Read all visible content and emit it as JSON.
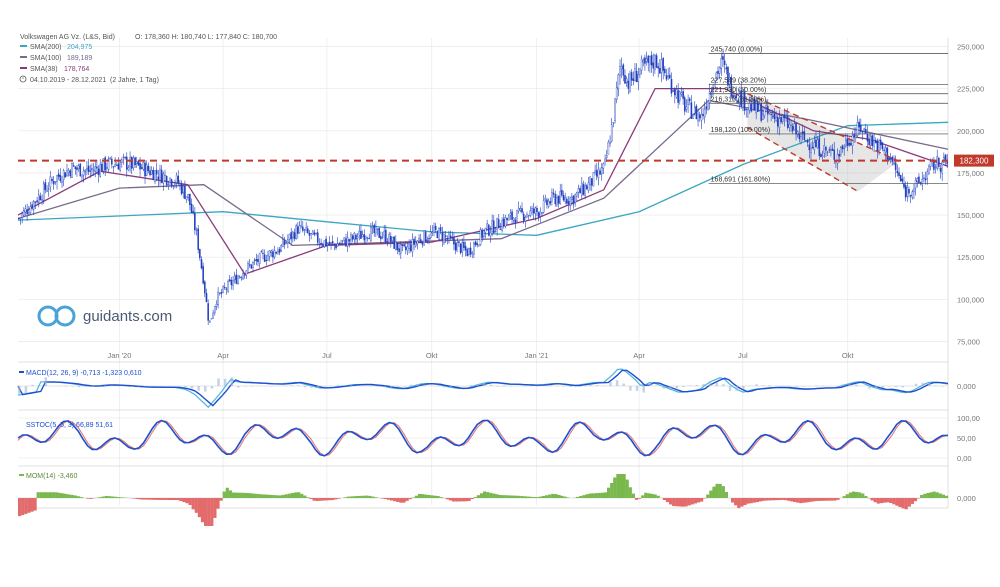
{
  "header": {
    "instrument": "Volkswagen AG Vz. (L&S, Bid)",
    "ohlc": "O: 178,360  H: 180,740  L: 177,840  C: 180,700",
    "range": "04.10.2019 - 28.12.2021",
    "range_note": "(2 Jahre, 1 Tag)"
  },
  "legend": [
    {
      "label": "SMA(200)",
      "value": "204,975",
      "color": "#3aa6c4"
    },
    {
      "label": "SMA(100)",
      "value": "189,189",
      "color": "#7a6a8c"
    },
    {
      "label": "SMA(38)",
      "value": "178,764",
      "color": "#8a3a78"
    }
  ],
  "watermark": "guidants.com",
  "colors": {
    "candle": "#1f3fbf",
    "resistance": "#c0392b",
    "grid": "#ececec",
    "macd": "#1d4fd0",
    "signal": "#4fb3d9",
    "momUp": "#7ab84e",
    "momDown": "#e36b6b"
  },
  "price_marker": {
    "value": 182.3,
    "label": "182,300"
  },
  "panels": {
    "macd": {
      "label": "MACD(12, 26, 9)",
      "v1": "-0,713",
      "v2": "-1,323",
      "v3": "0,610",
      "ticks": [
        "0,000"
      ]
    },
    "stoch": {
      "label": "SSTOC(5, 5, 3)",
      "v1": "66,89",
      "v2": "51,61",
      "ticks": [
        "100,00",
        "50,00",
        "0,00"
      ]
    },
    "mom": {
      "label": "MOM(14)",
      "v1": "-3,460",
      "ticks": [
        "0,000"
      ]
    }
  },
  "chart_data": {
    "type": "candlestick",
    "title": "Volkswagen AG Vz. (L&S, Bid)",
    "period": "04.10.2019 - 28.12.2021",
    "x_ticks": [
      "Jan '20",
      "Apr",
      "Jul",
      "Okt",
      "Jan '21",
      "Apr",
      "Jul",
      "Okt"
    ],
    "y_ticks": [
      "250,000",
      "225,000",
      "200,000",
      "175,000",
      "150,000",
      "125,000",
      "100,000",
      "75,000"
    ],
    "ylim": [
      70,
      255
    ],
    "close_path": [
      [
        "2019-10-04",
        148
      ],
      [
        "2019-10-20",
        160
      ],
      [
        "2019-11-05",
        172
      ],
      [
        "2019-11-20",
        178
      ],
      [
        "2019-12-05",
        176
      ],
      [
        "2019-12-20",
        180
      ],
      [
        "2020-01-05",
        181
      ],
      [
        "2020-01-20",
        178
      ],
      [
        "2020-02-05",
        174
      ],
      [
        "2020-02-20",
        170
      ],
      [
        "2020-03-01",
        160
      ],
      [
        "2020-03-08",
        138
      ],
      [
        "2020-03-14",
        112
      ],
      [
        "2020-03-19",
        85
      ],
      [
        "2020-03-25",
        100
      ],
      [
        "2020-04-05",
        108
      ],
      [
        "2020-04-20",
        118
      ],
      [
        "2020-05-05",
        125
      ],
      [
        "2020-05-20",
        130
      ],
      [
        "2020-06-05",
        142
      ],
      [
        "2020-06-20",
        136
      ],
      [
        "2020-07-05",
        132
      ],
      [
        "2020-07-20",
        135
      ],
      [
        "2020-08-05",
        140
      ],
      [
        "2020-08-20",
        138
      ],
      [
        "2020-09-05",
        128
      ],
      [
        "2020-09-20",
        136
      ],
      [
        "2020-10-05",
        140
      ],
      [
        "2020-10-20",
        133
      ],
      [
        "2020-11-01",
        128
      ],
      [
        "2020-11-15",
        140
      ],
      [
        "2020-12-01",
        146
      ],
      [
        "2020-12-15",
        150
      ],
      [
        "2021-01-01",
        152
      ],
      [
        "2021-01-15",
        160
      ],
      [
        "2021-02-01",
        160
      ],
      [
        "2021-02-15",
        168
      ],
      [
        "2021-03-01",
        178
      ],
      [
        "2021-03-08",
        205
      ],
      [
        "2021-03-15",
        240
      ],
      [
        "2021-03-22",
        228
      ],
      [
        "2021-04-01",
        236
      ],
      [
        "2021-04-15",
        242
      ],
      [
        "2021-04-25",
        232
      ],
      [
        "2021-05-10",
        215
      ],
      [
        "2021-05-25",
        208
      ],
      [
        "2021-06-05",
        232
      ],
      [
        "2021-06-12",
        240
      ],
      [
        "2021-06-20",
        226
      ],
      [
        "2021-07-05",
        215
      ],
      [
        "2021-07-20",
        210
      ],
      [
        "2021-08-05",
        206
      ],
      [
        "2021-08-20",
        196
      ],
      [
        "2021-09-05",
        190
      ],
      [
        "2021-09-20",
        185
      ],
      [
        "2021-10-01",
        195
      ],
      [
        "2021-10-12",
        202
      ],
      [
        "2021-10-20",
        195
      ],
      [
        "2021-11-05",
        186
      ],
      [
        "2021-11-20",
        164
      ],
      [
        "2021-12-01",
        168
      ],
      [
        "2021-12-15",
        180
      ],
      [
        "2021-12-28",
        181
      ]
    ],
    "series": [
      {
        "name": "SMA(200)",
        "value": 204.975,
        "path": [
          [
            "2019-10-04",
            147
          ],
          [
            "2020-04-01",
            152
          ],
          [
            "2020-07-01",
            146
          ],
          [
            "2020-10-01",
            140
          ],
          [
            "2021-01-01",
            138
          ],
          [
            "2021-04-01",
            152
          ],
          [
            "2021-07-01",
            180
          ],
          [
            "2021-10-01",
            203
          ],
          [
            "2021-12-28",
            205
          ]
        ]
      },
      {
        "name": "SMA(100)",
        "value": 189.189,
        "path": [
          [
            "2019-10-04",
            148
          ],
          [
            "2020-01-01",
            166
          ],
          [
            "2020-03-15",
            168
          ],
          [
            "2020-06-01",
            132
          ],
          [
            "2020-09-01",
            134
          ],
          [
            "2020-12-01",
            136
          ],
          [
            "2021-03-01",
            160
          ],
          [
            "2021-06-01",
            218
          ],
          [
            "2021-09-01",
            206
          ],
          [
            "2021-12-28",
            189
          ]
        ]
      },
      {
        "name": "SMA(38)",
        "value": 178.764,
        "path": [
          [
            "2019-10-04",
            150
          ],
          [
            "2019-12-15",
            176
          ],
          [
            "2020-03-01",
            168
          ],
          [
            "2020-04-20",
            115
          ],
          [
            "2020-07-01",
            132
          ],
          [
            "2020-10-01",
            134
          ],
          [
            "2021-01-01",
            148
          ],
          [
            "2021-03-01",
            165
          ],
          [
            "2021-04-15",
            225
          ],
          [
            "2021-06-15",
            225
          ],
          [
            "2021-09-01",
            200
          ],
          [
            "2021-10-20",
            195
          ],
          [
            "2021-12-28",
            179
          ]
        ]
      }
    ],
    "horizontal_line": {
      "value": 182.3,
      "label": "182,300",
      "style": "dashed",
      "color": "#c0392b"
    },
    "fibonacci_levels": [
      {
        "label": "245,740 (0.00%)",
        "value": 245.74
      },
      {
        "label": "227,549 (38.20%)",
        "value": 227.549
      },
      {
        "label": "221,930 (50.00%)",
        "value": 221.93
      },
      {
        "label": "216,310 (61.80%)",
        "value": 216.31
      },
      {
        "label": "198,120 (100.00%)",
        "value": 198.12
      },
      {
        "label": "168,691 (161.80%)",
        "value": 168.691
      }
    ],
    "channel": {
      "upper": [
        [
          "2021-07-05",
          222
        ],
        [
          "2021-11-15",
          182
        ]
      ],
      "lower": [
        [
          "2021-07-05",
          202
        ],
        [
          "2021-10-10",
          164
        ]
      ],
      "style": "dashed",
      "color": "#c0392b"
    },
    "legend_position": "top-left",
    "grid": true
  }
}
